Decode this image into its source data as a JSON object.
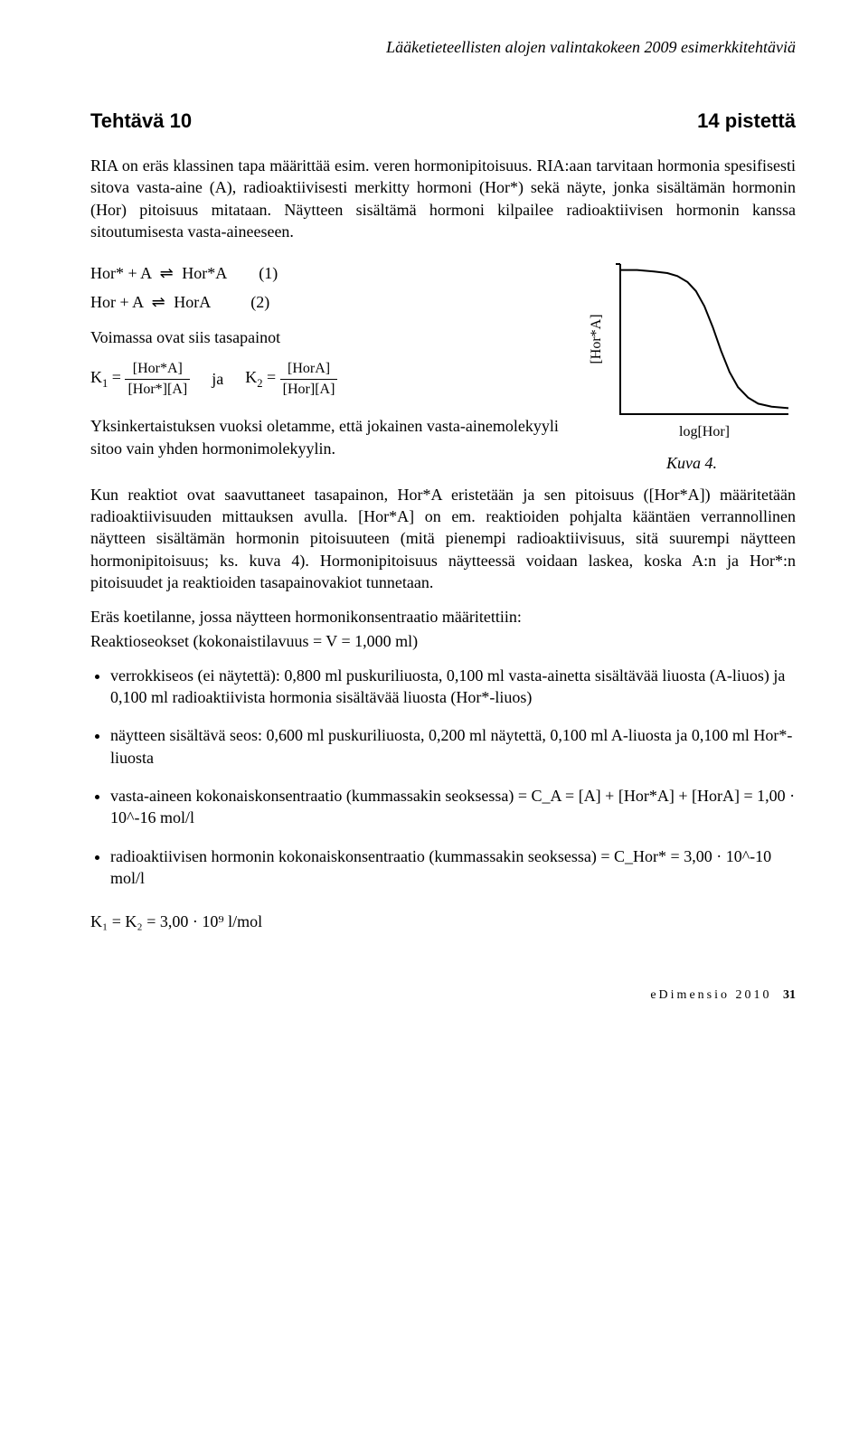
{
  "header_text": "Lääketieteellisten alojen valintakokeen 2009 esimerkkitehtäviä",
  "task_label": "Tehtävä 10",
  "points_label": "14 pistettä",
  "intro": "RIA on eräs klassinen tapa määrittää esim. veren hormonipitoisuus. RIA:aan tarvitaan hormonia spesifisesti sitova vasta-aine (A), radioaktiivisesti merkitty hormoni (Hor*) sekä näyte, jonka sisältämän hormonin (Hor) pitoisuus mitataan. Näytteen sisältämä hormoni kilpailee radioaktiivisen hormonin kanssa sitoutumisesta vasta-aineeseen.",
  "eq1": {
    "lhs": "Hor* + A",
    "rhs": "Hor*A",
    "num": "(1)"
  },
  "eq2": {
    "lhs": "Hor + A",
    "rhs": "HorA",
    "num": "(2)"
  },
  "balance_text": "Voimassa ovat siis tasapainot",
  "k1": {
    "label": "K",
    "sub": "1",
    "num": "[Hor*A]",
    "den": "[Hor*][A]"
  },
  "conj": "ja",
  "k2": {
    "label": "K",
    "sub": "2",
    "num": "[HorA]",
    "den": "[Hor][A]"
  },
  "simplify": "Yksinkertaistuksen vuoksi oletamme, että jokainen vasta-ainemolekyyli sitoo vain yhden hormonimolekyylin.",
  "figcap": "Kuva 4.",
  "after_fig": "Kun reaktiot ovat saavuttaneet tasapainon, Hor*A eristetään ja sen pitoisuus ([Hor*A]) määritetään radioaktiivisuuden mittauksen avulla. [Hor*A] on em. reaktioiden pohjalta kääntäen verrannollinen näytteen sisältämän hormonin pitoisuuteen (mitä pienempi radioaktiivisuus, sitä suurempi näytteen hormonipitoisuus; ks. kuva 4). Hormonipitoisuus näytteessä voidaan laskea, koska A:n ja Hor*:n pitoisuudet ja reaktioiden tasapainovakiot tunnetaan.",
  "setup_heading": "Eräs koetilanne, jossa näytteen hormonikonsentraatio määritettiin:",
  "setup_sub": "Reaktioseokset (kokonaistilavuus = V = 1,000 ml)",
  "bullets": [
    "verrokkiseos (ei näytettä): 0,800 ml puskuriliuosta, 0,100 ml vasta-ainetta sisältävää liuosta (A-liuos) ja 0,100 ml radioaktiivista hormonia sisältävää liuosta (Hor*-liuos)",
    "näytteen sisältävä seos: 0,600 ml puskuriliuosta, 0,200 ml näytettä, 0,100 ml A-liuosta ja 0,100 ml Hor*-liuosta",
    "vasta-aineen kokonaiskonsentraatio (kummassakin seoksessa) = C_A = [A] + [Hor*A] + [HorA] = 1,00 · 10^-16 mol/l",
    "radioaktiivisen hormonin kokonaiskonsentraatio (kummassakin seoksessa) = C_Hor* = 3,00 · 10^-10 mol/l"
  ],
  "k_eq": "K₁ = K₂ = 3,00 · 10⁹ l/mol",
  "footer": {
    "journal": "eDimensio 2010",
    "page": "31"
  },
  "chart": {
    "type": "line",
    "ylabel": "[Hor*A]",
    "xlabel": "log[Hor]",
    "curve_color": "#000000",
    "axis_color": "#000000",
    "linewidth": 2,
    "ylim": [
      0,
      1
    ],
    "xlim": [
      0,
      1
    ],
    "points": [
      [
        0.0,
        0.96
      ],
      [
        0.1,
        0.96
      ],
      [
        0.2,
        0.95
      ],
      [
        0.28,
        0.94
      ],
      [
        0.34,
        0.92
      ],
      [
        0.4,
        0.88
      ],
      [
        0.45,
        0.82
      ],
      [
        0.5,
        0.72
      ],
      [
        0.55,
        0.58
      ],
      [
        0.6,
        0.42
      ],
      [
        0.65,
        0.28
      ],
      [
        0.7,
        0.18
      ],
      [
        0.76,
        0.11
      ],
      [
        0.82,
        0.07
      ],
      [
        0.9,
        0.05
      ],
      [
        1.0,
        0.04
      ]
    ]
  }
}
